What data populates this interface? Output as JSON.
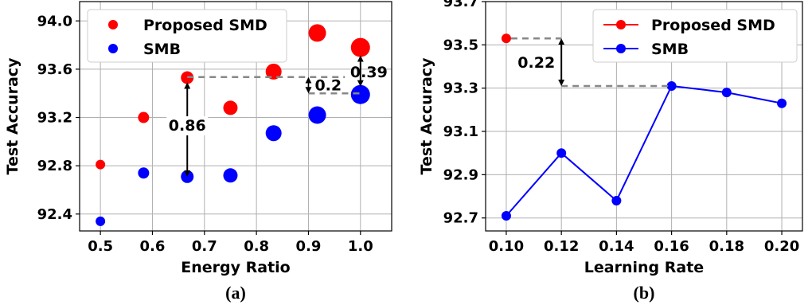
{
  "chart_data": [
    {
      "type": "scatter",
      "caption": "(a)",
      "xlabel": "Energy Ratio",
      "ylabel": "Test Accuracy",
      "xlim": [
        0.46,
        1.06
      ],
      "ylim": [
        92.26,
        94.16
      ],
      "xticks": [
        "0.5",
        "0.6",
        "0.7",
        "0.8",
        "0.9",
        "1.0"
      ],
      "xtick_values": [
        0.5,
        0.6,
        0.7,
        0.8,
        0.9,
        1.0
      ],
      "yticks": [
        "92.4",
        "92.8",
        "93.2",
        "93.6",
        "94.0"
      ],
      "ytick_values": [
        92.4,
        92.8,
        93.2,
        93.6,
        94.0
      ],
      "grid": true,
      "legend_position": "top-left",
      "marker_size_note": "marker size grows with energy ratio",
      "series": [
        {
          "name": "Proposed SMD",
          "color": "#ff0000",
          "x": [
            0.5,
            0.583,
            0.667,
            0.75,
            0.833,
            0.917,
            1.0
          ],
          "y": [
            92.81,
            93.2,
            93.53,
            93.28,
            93.58,
            93.9,
            93.78
          ]
        },
        {
          "name": "SMB",
          "color": "#0000ff",
          "x": [
            0.5,
            0.583,
            0.667,
            0.75,
            0.833,
            0.917,
            1.0
          ],
          "y": [
            92.34,
            92.74,
            92.71,
            92.72,
            93.07,
            93.22,
            93.39
          ]
        }
      ],
      "annotations": [
        {
          "text": "0.86"
        },
        {
          "text": "0.2"
        },
        {
          "text": "0.39"
        }
      ]
    },
    {
      "type": "line",
      "caption": "(b)",
      "xlabel": "Learning Rate",
      "ylabel": "Test Accuracy",
      "xlim": [
        0.0925,
        0.2075
      ],
      "ylim": [
        92.64,
        93.7
      ],
      "xticks": [
        "0.10",
        "0.12",
        "0.14",
        "0.16",
        "0.18",
        "0.20"
      ],
      "xtick_values": [
        0.1,
        0.12,
        0.14,
        0.16,
        0.18,
        0.2
      ],
      "yticks": [
        "92.7",
        "92.9",
        "93.1",
        "93.3",
        "93.5",
        "93.7"
      ],
      "ytick_values": [
        92.7,
        92.9,
        93.1,
        93.3,
        93.5,
        93.7
      ],
      "grid": true,
      "legend_position": "top-right",
      "series": [
        {
          "name": "Proposed SMD",
          "color": "#ff0000",
          "x": [
            0.1
          ],
          "y": [
            93.53
          ]
        },
        {
          "name": "SMB",
          "color": "#0000ff",
          "x": [
            0.1,
            0.12,
            0.14,
            0.16,
            0.18,
            0.2
          ],
          "y": [
            92.71,
            93.0,
            92.78,
            93.31,
            93.28,
            93.23
          ]
        }
      ],
      "annotations": [
        {
          "text": "0.22"
        }
      ]
    }
  ]
}
